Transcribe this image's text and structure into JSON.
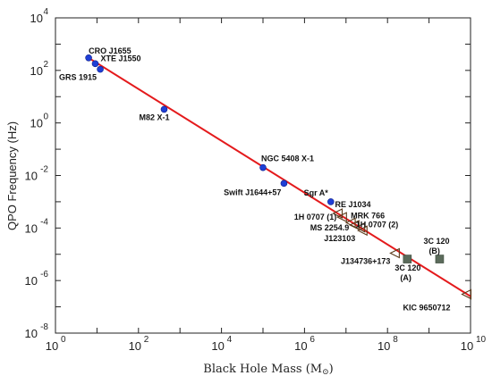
{
  "chart_data": {
    "type": "scatter",
    "xlabel": "Black Hole Mass (M",
    "xlabel_sun": "⊙",
    "xlabel_close": ")",
    "ylabel": "QPO Frequency (Hz)",
    "x_scale": "log",
    "y_scale": "log",
    "xlim": [
      1,
      10000000000
    ],
    "ylim": [
      1e-08,
      10000
    ],
    "grid": false,
    "x_ticks": [
      {
        "value": 1,
        "base": "10",
        "exp": "0"
      },
      {
        "value": 100,
        "base": "10",
        "exp": "2"
      },
      {
        "value": 10000,
        "base": "10",
        "exp": "4"
      },
      {
        "value": 1000000,
        "base": "10",
        "exp": "6"
      },
      {
        "value": 100000000,
        "base": "10",
        "exp": "8"
      },
      {
        "value": 10000000000,
        "base": "10",
        "exp": "10"
      }
    ],
    "y_ticks": [
      {
        "value": 1e-08,
        "base": "10",
        "exp": "-8"
      },
      {
        "value": 1e-06,
        "base": "10",
        "exp": "-6"
      },
      {
        "value": 0.0001,
        "base": "10",
        "exp": "-4"
      },
      {
        "value": 0.01,
        "base": "10",
        "exp": "-2"
      },
      {
        "value": 1,
        "base": "10",
        "exp": "0"
      },
      {
        "value": 100,
        "base": "10",
        "exp": "2"
      },
      {
        "value": 10000,
        "base": "10",
        "exp": "4"
      }
    ],
    "fit_line": {
      "x": [
        6.3,
        10000000000
      ],
      "y": [
        300,
        2.5e-07
      ],
      "color": "#e41a1c"
    },
    "series": [
      {
        "marker": "circle",
        "color": "#1f3fd6",
        "points": [
          {
            "label": "CRO J1655",
            "x": 6.3,
            "y": 300
          },
          {
            "label": "XTE J1550",
            "x": 9.1,
            "y": 180
          },
          {
            "label": "GRS 1915",
            "x": 12,
            "y": 110
          },
          {
            "label": "M82 X-1",
            "x": 415,
            "y": 3.3
          },
          {
            "label": "NGC 5408 X-1",
            "x": 100000,
            "y": 0.02
          },
          {
            "label": "Swift J1644+57",
            "x": 320000,
            "y": 0.005
          },
          {
            "label": "Sgr A*",
            "x": 4300000,
            "y": 0.001
          }
        ]
      },
      {
        "marker": "triangle-left",
        "color": "#5a3a1a",
        "points": [
          {
            "label": "RE J1034",
            "x": 6300000,
            "y": 0.00036
          },
          {
            "label": "1H 0707 (1)",
            "x": 8000000,
            "y": 0.00026
          },
          {
            "label": "MRK 766",
            "x": 13000000,
            "y": 0.00016
          },
          {
            "label": "MS 2254.9",
            "x": 16000000,
            "y": 0.00013
          },
          {
            "label": "1H 0707 (2)",
            "x": 22000000,
            "y": 0.000105
          },
          {
            "label": "J123103",
            "x": 25000000,
            "y": 8e-05
          },
          {
            "label": "J134736+173",
            "x": 150000000,
            "y": 1.1e-05
          },
          {
            "label": "KIC 9650712",
            "x": 8000000000,
            "y": 3e-07
          }
        ]
      },
      {
        "marker": "square",
        "color": "#5b6b5b",
        "points": [
          {
            "label": "3C 120\n(A)",
            "x": 300000000,
            "y": 6.6e-06
          },
          {
            "label": "3C 120\n(B)",
            "x": 1800000000,
            "y": 6.6e-06
          }
        ]
      }
    ]
  }
}
